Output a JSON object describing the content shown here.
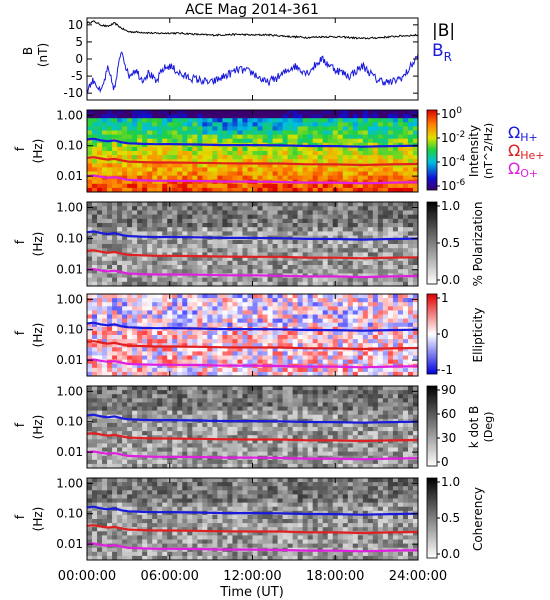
{
  "chart_data": {
    "title": "ACE Mag 2014-361",
    "xlabel": "Time (UT)",
    "xticks": [
      "00:00:00",
      "06:00:00",
      "12:00:00",
      "18:00:00",
      "24:00:00"
    ],
    "xlim_hours": [
      0,
      24
    ],
    "panels": [
      {
        "type": "line",
        "ylabel": "B",
        "yunit": "(nT)",
        "ylim": [
          -12,
          12
        ],
        "yticks": [
          "10",
          "5",
          "0",
          "-5",
          "-10"
        ],
        "ytick_values": [
          10,
          5,
          0,
          -5,
          -10
        ],
        "series": [
          {
            "name": "|B|",
            "color": "#000000",
            "x_hours": [
              0,
              0.5,
              1,
              1.5,
              2,
              2.5,
              3,
              4,
              5,
              6,
              7,
              8,
              9,
              10,
              11,
              12,
              13,
              14,
              15,
              16,
              17,
              18,
              19,
              20,
              21,
              22,
              23,
              24
            ],
            "values": [
              10.5,
              11,
              10,
              9.5,
              10.5,
              9,
              8,
              7.8,
              7.5,
              7.6,
              7.5,
              7.2,
              7,
              7.1,
              7.2,
              7,
              7.1,
              6.8,
              6.5,
              6.3,
              6.5,
              6.5,
              6.3,
              6,
              6.2,
              6.5,
              6.8,
              7
            ]
          },
          {
            "name": "B",
            "name_subscript": "R",
            "color": "#1a1adc",
            "x_hours": [
              0,
              0.5,
              1,
              1.5,
              2,
              2.5,
              3,
              3.5,
              4,
              4.5,
              5,
              5.5,
              6,
              7,
              8,
              9,
              10,
              11,
              12,
              13,
              14,
              15,
              16,
              17,
              18,
              19,
              20,
              21,
              22,
              23,
              24
            ],
            "values": [
              -9,
              -6,
              -10,
              -3,
              -9,
              3,
              -5,
              -3,
              -6,
              -4,
              -7,
              -3,
              -2,
              -5,
              -6,
              -7,
              -5,
              -3,
              -4,
              -7,
              -5,
              -2,
              -4,
              0,
              -3,
              -5,
              -2,
              -6,
              -7,
              -5,
              1
            ]
          }
        ]
      },
      {
        "type": "heatmap",
        "ylabel": "f",
        "yunit": "(Hz)",
        "yscale": "log",
        "ylim": [
          0.003,
          1.5
        ],
        "yticks": [
          "1.00",
          "0.10",
          "0.01"
        ],
        "colorbar_label": "Intensity",
        "colorbar_unit": "(nT^2/Hz)",
        "colorbar_ticks": [
          "10^0",
          "10^-2",
          "10^-4",
          "10^-6"
        ],
        "colormap": "rainbow"
      },
      {
        "type": "heatmap",
        "ylabel": "f",
        "yunit": "(Hz)",
        "yscale": "log",
        "ylim": [
          0.003,
          1.5
        ],
        "yticks": [
          "1.00",
          "0.10",
          "0.01"
        ],
        "colorbar_label": "% Polarization",
        "colorbar_ticks": [
          "1.0",
          "0.5",
          "0.0"
        ],
        "colormap": "gray"
      },
      {
        "type": "heatmap",
        "ylabel": "f",
        "yunit": "(Hz)",
        "yscale": "log",
        "ylim": [
          0.003,
          1.5
        ],
        "yticks": [
          "1.00",
          "0.10",
          "0.01"
        ],
        "colorbar_label": "Ellipticity",
        "colorbar_ticks": [
          "1",
          "0",
          "-1"
        ],
        "colormap": "blue-white-red"
      },
      {
        "type": "heatmap",
        "ylabel": "f",
        "yunit": "(Hz)",
        "yscale": "log",
        "ylim": [
          0.003,
          1.5
        ],
        "yticks": [
          "1.00",
          "0.10",
          "0.01"
        ],
        "colorbar_label": "k dot B",
        "colorbar_unit": "(Deg)",
        "colorbar_ticks": [
          "90",
          "60",
          "30",
          "0"
        ],
        "colormap": "gray"
      },
      {
        "type": "heatmap",
        "ylabel": "f",
        "yunit": "(Hz)",
        "yscale": "log",
        "ylim": [
          0.003,
          1.5
        ],
        "yticks": [
          "1.00",
          "0.10",
          "0.01"
        ],
        "colorbar_label": "Coherency",
        "colorbar_ticks": [
          "1.0",
          "0.5",
          "0.0"
        ],
        "colormap": "gray"
      }
    ],
    "gyrofrequency_lines": {
      "x_hours": [
        0,
        0.5,
        1,
        1.5,
        2,
        2.5,
        3,
        3.5,
        4,
        5,
        6,
        8,
        10,
        12,
        14,
        16,
        18,
        20,
        22,
        24
      ],
      "series": [
        {
          "name": "Ω",
          "name_subscript": "H+",
          "color": "#1a1adc",
          "values": [
            0.16,
            0.17,
            0.15,
            0.14,
            0.15,
            0.13,
            0.12,
            0.118,
            0.115,
            0.112,
            0.113,
            0.11,
            0.105,
            0.105,
            0.103,
            0.098,
            0.097,
            0.093,
            0.097,
            0.1
          ]
        },
        {
          "name": "Ω",
          "name_subscript": "He+",
          "color": "#e02020",
          "values": [
            0.04,
            0.042,
            0.038,
            0.035,
            0.037,
            0.033,
            0.03,
            0.0295,
            0.029,
            0.028,
            0.028,
            0.0275,
            0.0265,
            0.026,
            0.026,
            0.0245,
            0.0243,
            0.0233,
            0.0243,
            0.025
          ]
        },
        {
          "name": "Ω",
          "name_subscript": "O+",
          "color": "#e020e0",
          "values": [
            0.01,
            0.0105,
            0.0095,
            0.0088,
            0.0093,
            0.0083,
            0.0075,
            0.0074,
            0.0072,
            0.007,
            0.007,
            0.0069,
            0.0066,
            0.0066,
            0.0064,
            0.0061,
            0.0061,
            0.0058,
            0.0061,
            0.0063
          ]
        }
      ]
    }
  }
}
